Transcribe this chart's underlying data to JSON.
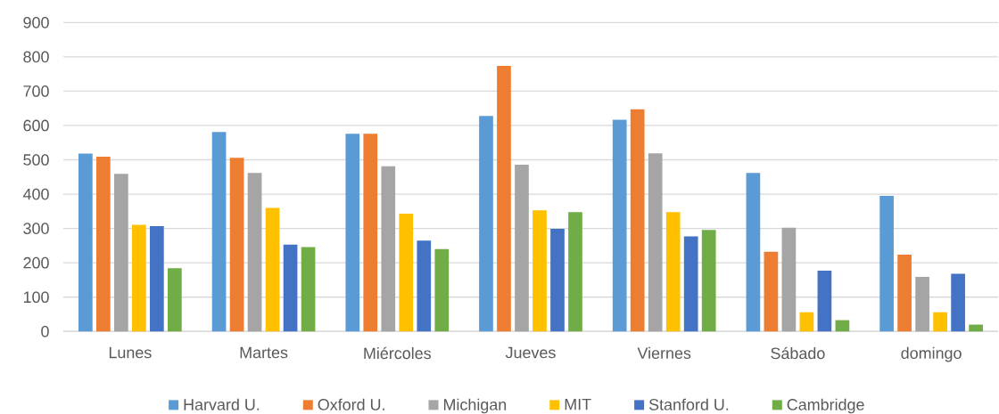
{
  "chart_data": {
    "type": "bar",
    "categories": [
      "Lunes",
      "Martes",
      "Miércoles",
      "Jueves",
      "Viernes",
      "Sábado",
      "domingo"
    ],
    "series": [
      {
        "name": "Harvard  U.",
        "color": "#5b9bd5",
        "values": [
          518,
          581,
          576,
          628,
          617,
          462,
          395
        ]
      },
      {
        "name": "Oxford U.",
        "color": "#ed7d31",
        "values": [
          509,
          506,
          576,
          774,
          647,
          232,
          224
        ]
      },
      {
        "name": "Michigan",
        "color": "#a5a5a5",
        "values": [
          459,
          462,
          481,
          486,
          519,
          302,
          159
        ]
      },
      {
        "name": "MIT",
        "color": "#ffc000",
        "values": [
          311,
          360,
          343,
          353,
          348,
          56,
          56
        ]
      },
      {
        "name": "Stanford U.",
        "color": "#4472c4",
        "values": [
          307,
          253,
          265,
          299,
          277,
          177,
          168
        ]
      },
      {
        "name": "Cambridge",
        "color": "#70ad47",
        "values": [
          184,
          246,
          240,
          348,
          296,
          33,
          20
        ]
      }
    ],
    "ylim": [
      0,
      900
    ],
    "yticks": [
      0,
      100,
      200,
      300,
      400,
      500,
      600,
      700,
      800,
      900
    ],
    "grid": "y",
    "legend": "bottom"
  }
}
